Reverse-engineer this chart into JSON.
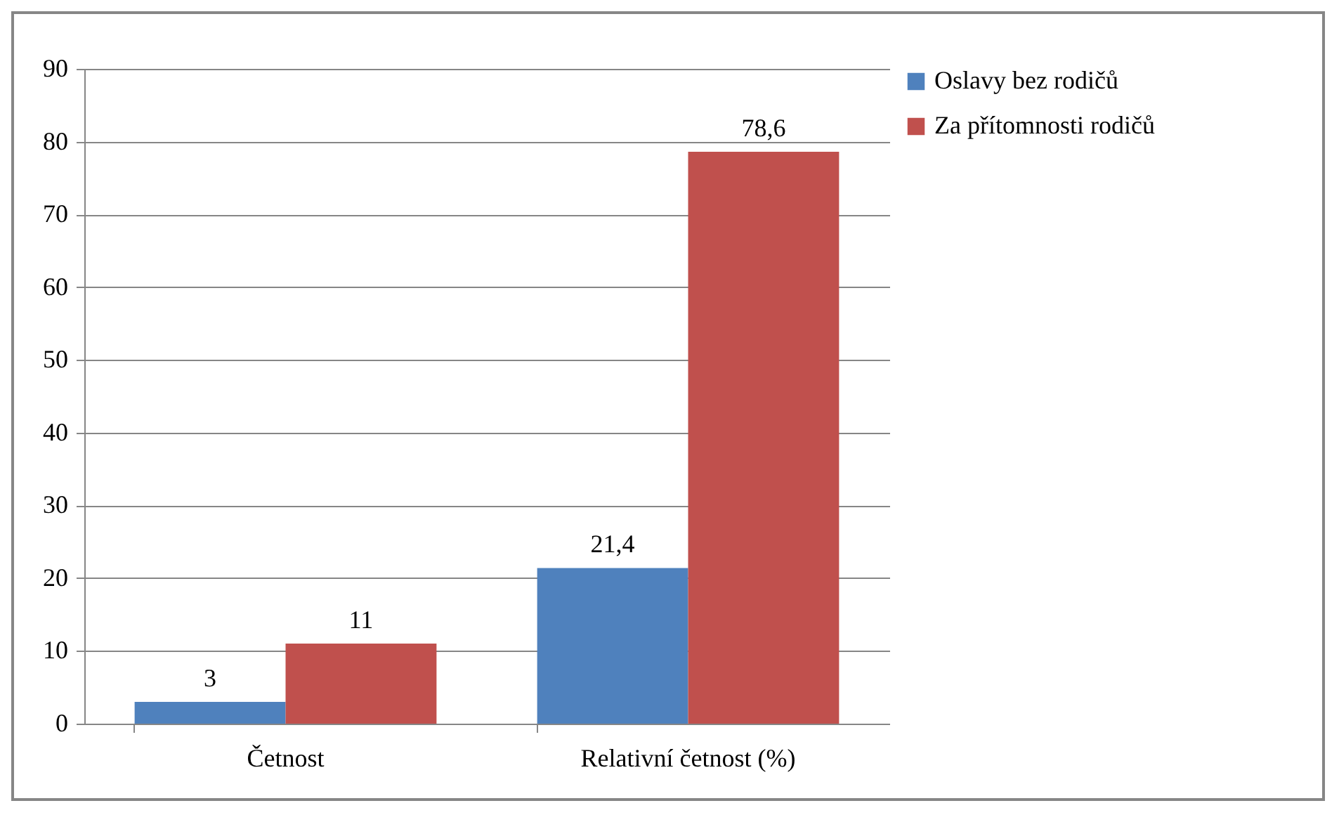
{
  "chart_data": {
    "type": "bar",
    "categories": [
      "Četnost",
      "Relativní četnost (%)"
    ],
    "series": [
      {
        "name": "Oslavy bez rodičů",
        "color": "#4f81bd",
        "values": [
          3,
          21.4
        ],
        "value_labels": [
          "3",
          "21,4"
        ]
      },
      {
        "name": "Za přítomnosti rodičů",
        "color": "#c0504d",
        "values": [
          11,
          78.6
        ],
        "value_labels": [
          "11",
          "78,6"
        ]
      }
    ],
    "ylim": [
      0,
      90
    ],
    "yticks": [
      0,
      10,
      20,
      30,
      40,
      50,
      60,
      70,
      80,
      90
    ],
    "grid": "y",
    "legend": "right"
  }
}
